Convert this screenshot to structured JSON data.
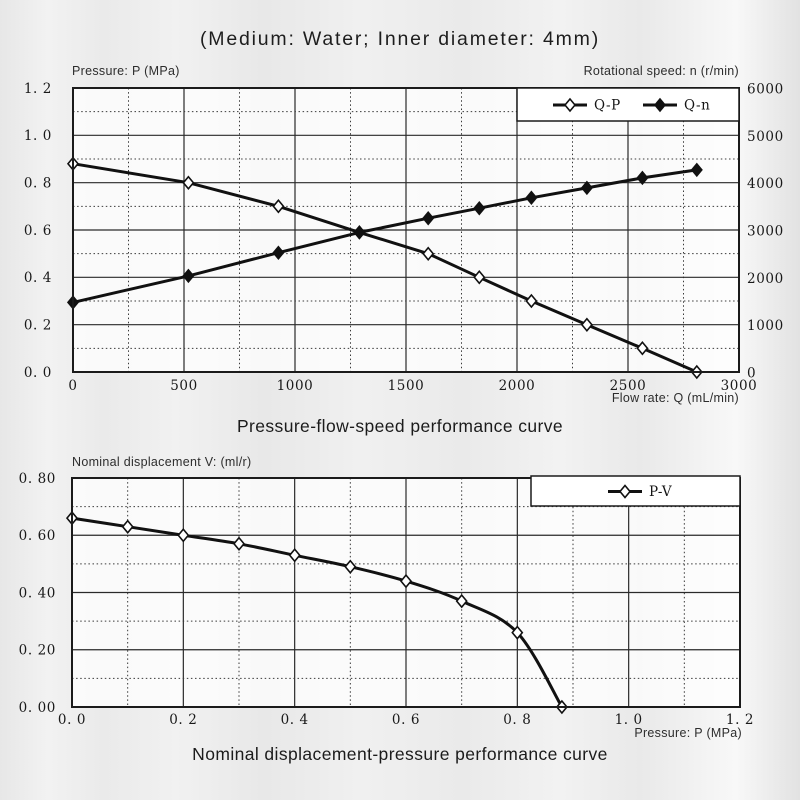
{
  "header": {
    "title": "(Medium: Water; Inner diameter: 4mm)"
  },
  "chart_data": [
    {
      "type": "line",
      "title": "Pressure-flow-speed performance curve",
      "grid": "major-solid-minor-dotted",
      "legend_position": "top-right-inside",
      "x": {
        "label": "Flow rate: Q (mL/min)",
        "min": 0,
        "max": 3000,
        "major_step": 500,
        "minor_step": 250,
        "tick_labels": [
          "0",
          "500",
          "1000",
          "1500",
          "2000",
          "2500",
          "3000"
        ]
      },
      "y_left": {
        "label": "Pressure: P (MPa)",
        "min": 0,
        "max": 1.2,
        "major_step": 0.2,
        "minor_step": 0.1,
        "tick_labels": [
          "0. 0",
          "0. 2",
          "0. 4",
          "0. 6",
          "0. 8",
          "1. 0",
          "1. 2"
        ]
      },
      "y_right": {
        "label": "Rotational speed: n (r/min)",
        "min": 0,
        "max": 6000,
        "major_step": 1000,
        "tick_labels": [
          "0",
          "1000",
          "2000",
          "3000",
          "4000",
          "5000",
          "6000"
        ]
      },
      "series": [
        {
          "name": "Q-P",
          "axis": "left",
          "marker": "open-diamond",
          "smooth": false,
          "points": [
            [
              0,
              0.88
            ],
            [
              520,
              0.8
            ],
            [
              925,
              0.7
            ],
            [
              1290,
              0.59
            ],
            [
              1600,
              0.5
            ],
            [
              1830,
              0.4
            ],
            [
              2065,
              0.3
            ],
            [
              2315,
              0.2
            ],
            [
              2565,
              0.1
            ],
            [
              2810,
              0.0
            ]
          ]
        },
        {
          "name": "Q-n",
          "axis": "right",
          "marker": "filled-diamond",
          "smooth": false,
          "points": [
            [
              0,
              1470
            ],
            [
              520,
              2030
            ],
            [
              925,
              2520
            ],
            [
              1290,
              2950
            ],
            [
              1600,
              3250
            ],
            [
              1830,
              3460
            ],
            [
              2065,
              3680
            ],
            [
              2315,
              3890
            ],
            [
              2565,
              4100
            ],
            [
              2810,
              4270
            ]
          ]
        }
      ]
    },
    {
      "type": "line",
      "title": "Nominal displacement-pressure performance curve",
      "grid": "major-solid-minor-dotted",
      "legend_position": "top-right-inside",
      "x": {
        "label": "Pressure: P (MPa)",
        "min": 0,
        "max": 1.2,
        "major_step": 0.2,
        "minor_step": 0.1,
        "tick_labels": [
          "0. 0",
          "0. 2",
          "0. 4",
          "0. 6",
          "0. 8",
          "1. 0",
          "1. 2"
        ]
      },
      "y_left": {
        "label": "Nominal displacement V: (ml/r)",
        "min": 0,
        "max": 0.8,
        "major_step": 0.2,
        "minor_step": 0.1,
        "tick_labels": [
          "0. 00",
          "0. 20",
          "0. 40",
          "0. 60",
          "0. 80"
        ]
      },
      "series": [
        {
          "name": "P-V",
          "axis": "left",
          "marker": "open-diamond",
          "smooth": true,
          "points": [
            [
              0,
              0.66
            ],
            [
              0.1,
              0.63
            ],
            [
              0.2,
              0.6
            ],
            [
              0.3,
              0.57
            ],
            [
              0.4,
              0.53
            ],
            [
              0.5,
              0.49
            ],
            [
              0.6,
              0.44
            ],
            [
              0.7,
              0.37
            ],
            [
              0.8,
              0.26
            ],
            [
              0.88,
              0.0
            ]
          ]
        }
      ]
    }
  ],
  "colors": {
    "ink": "#111111",
    "grid_major": "#2a2a2a",
    "grid_minor": "#3a3a3a",
    "plot_background": "#ffffff",
    "page_background": "#ececec"
  }
}
